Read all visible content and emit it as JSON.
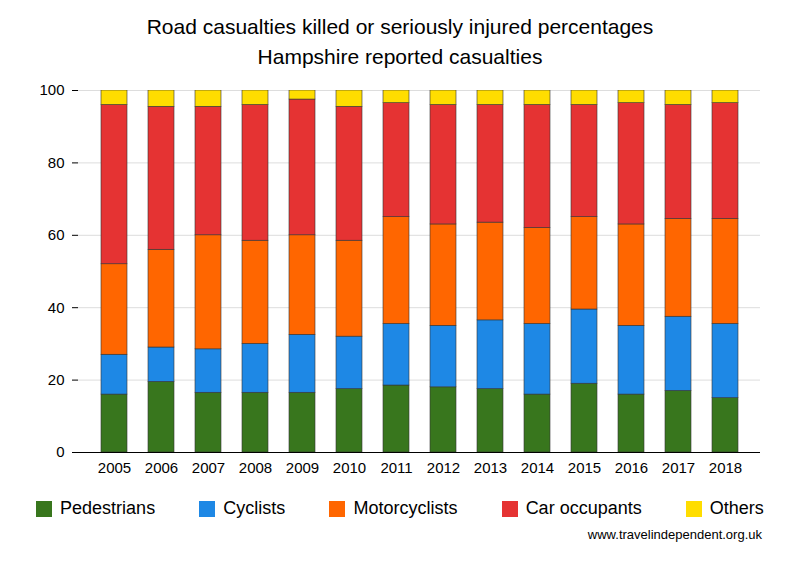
{
  "chart_data": {
    "type": "bar",
    "stacked": true,
    "title": "Road casualties killed or seriously injured percentages",
    "subtitle": "Hampshire reported casualties",
    "caption": "www.travelindependent.org.uk",
    "categories": [
      "2005",
      "2006",
      "2007",
      "2008",
      "2009",
      "2010",
      "2011",
      "2012",
      "2013",
      "2014",
      "2015",
      "2016",
      "2017",
      "2018"
    ],
    "series": [
      {
        "name": "Pedestrians",
        "color": "#38761d",
        "values": [
          16,
          19.5,
          16.5,
          16.5,
          16.5,
          17.5,
          18.5,
          18,
          17.5,
          16,
          19,
          16,
          17,
          15
        ]
      },
      {
        "name": "Cyclists",
        "color": "#1e88e5",
        "values": [
          11,
          9.5,
          12,
          13.5,
          16,
          14.5,
          17,
          17,
          19,
          19.5,
          20.5,
          19,
          20.5,
          20.5
        ]
      },
      {
        "name": "Motorcyclists",
        "color": "#ff6600",
        "values": [
          25,
          27,
          31.5,
          28.5,
          27.5,
          26.5,
          29.5,
          28,
          27,
          26.5,
          25.5,
          28,
          27,
          29
        ]
      },
      {
        "name": "Car occupants",
        "color": "#e53333",
        "values": [
          44,
          39.5,
          35.5,
          37.5,
          37.5,
          37,
          31.5,
          33,
          32.5,
          34,
          31,
          33.5,
          31.5,
          32
        ]
      },
      {
        "name": "Others",
        "color": "#ffdd00",
        "values": [
          4,
          4.5,
          4.5,
          4,
          2.5,
          4.5,
          3.5,
          4,
          4,
          4,
          4,
          3.5,
          4,
          3.5
        ]
      }
    ],
    "ylim": [
      0,
      100
    ],
    "yticks": [
      0,
      20,
      40,
      60,
      80,
      100
    ],
    "grid": true,
    "legend": "bottom"
  }
}
